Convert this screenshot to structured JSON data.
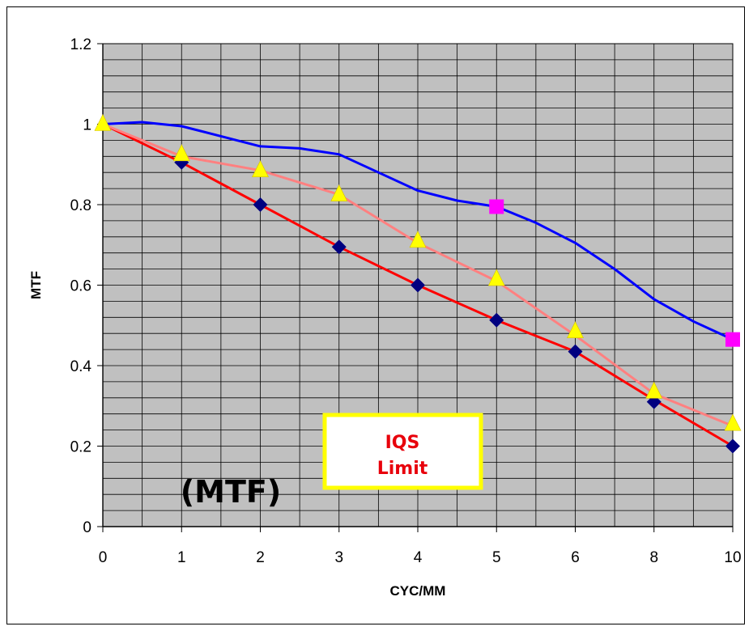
{
  "chart_data": {
    "type": "line",
    "x_categories": [
      "0",
      "1",
      "2",
      "3",
      "4",
      "5",
      "6",
      "8",
      "10"
    ],
    "xlabel": "CYC/MM",
    "ylabel": "MTF",
    "ylim": [
      0,
      1.2
    ],
    "yticks": [
      "0",
      "0.2",
      "0.4",
      "0.6",
      "0.8",
      "1",
      "1.2"
    ],
    "grid": true,
    "plot_background": "#c0c0c0",
    "series": [
      {
        "color": "#0000ff",
        "marker": "none",
        "points": [
          [
            0,
            1.0
          ],
          [
            0.5,
            1.005
          ],
          [
            1,
            0.995
          ],
          [
            1.5,
            0.97
          ],
          [
            2,
            0.945
          ],
          [
            2.5,
            0.94
          ],
          [
            3,
            0.925
          ],
          [
            3.5,
            0.88
          ],
          [
            4,
            0.835
          ],
          [
            4.5,
            0.81
          ],
          [
            5,
            0.795
          ],
          [
            5.5,
            0.755
          ],
          [
            6,
            0.705
          ],
          [
            6.5,
            0.64
          ],
          [
            7,
            0.565
          ],
          [
            7.5,
            0.51
          ],
          [
            8,
            0.465
          ]
        ]
      },
      {
        "color": "#ff0000",
        "marker": "none",
        "points": [
          [
            0,
            1.0
          ],
          [
            1,
            0.905
          ],
          [
            2,
            0.8
          ],
          [
            3,
            0.695
          ],
          [
            4,
            0.6
          ],
          [
            5,
            0.513
          ],
          [
            6,
            0.435
          ],
          [
            7,
            0.315
          ],
          [
            8,
            0.2
          ]
        ]
      },
      {
        "color": "#ff8080",
        "marker": "none",
        "points": [
          [
            0,
            1.0
          ],
          [
            1,
            0.92
          ],
          [
            2,
            0.885
          ],
          [
            3,
            0.825
          ],
          [
            4,
            0.705
          ],
          [
            5,
            0.61
          ],
          [
            6,
            0.475
          ],
          [
            7,
            0.33
          ],
          [
            8,
            0.25
          ]
        ]
      }
    ],
    "marker_series": [
      {
        "shape": "diamond",
        "color": "#000080",
        "points": [
          [
            1,
            0.905
          ],
          [
            2,
            0.8
          ],
          [
            3,
            0.695
          ],
          [
            4,
            0.6
          ],
          [
            5,
            0.513
          ],
          [
            6,
            0.435
          ],
          [
            7,
            0.31
          ],
          [
            8,
            0.2
          ]
        ]
      },
      {
        "shape": "triangle",
        "color": "#ffff00",
        "points": [
          [
            0,
            1.0
          ],
          [
            1,
            0.925
          ],
          [
            2,
            0.885
          ],
          [
            3,
            0.825
          ],
          [
            4,
            0.71
          ],
          [
            5,
            0.615
          ],
          [
            6,
            0.485
          ],
          [
            7,
            0.335
          ],
          [
            8,
            0.255
          ]
        ]
      },
      {
        "shape": "square",
        "color": "#ff00ff",
        "points": [
          [
            5,
            0.795
          ],
          [
            8,
            0.465
          ]
        ]
      }
    ],
    "annotations": {
      "callout_lines": [
        "IQS",
        "Limit"
      ],
      "callout_border": "#ffff00",
      "callout_text_color": "#e8000b",
      "label": "(MTF)"
    }
  }
}
